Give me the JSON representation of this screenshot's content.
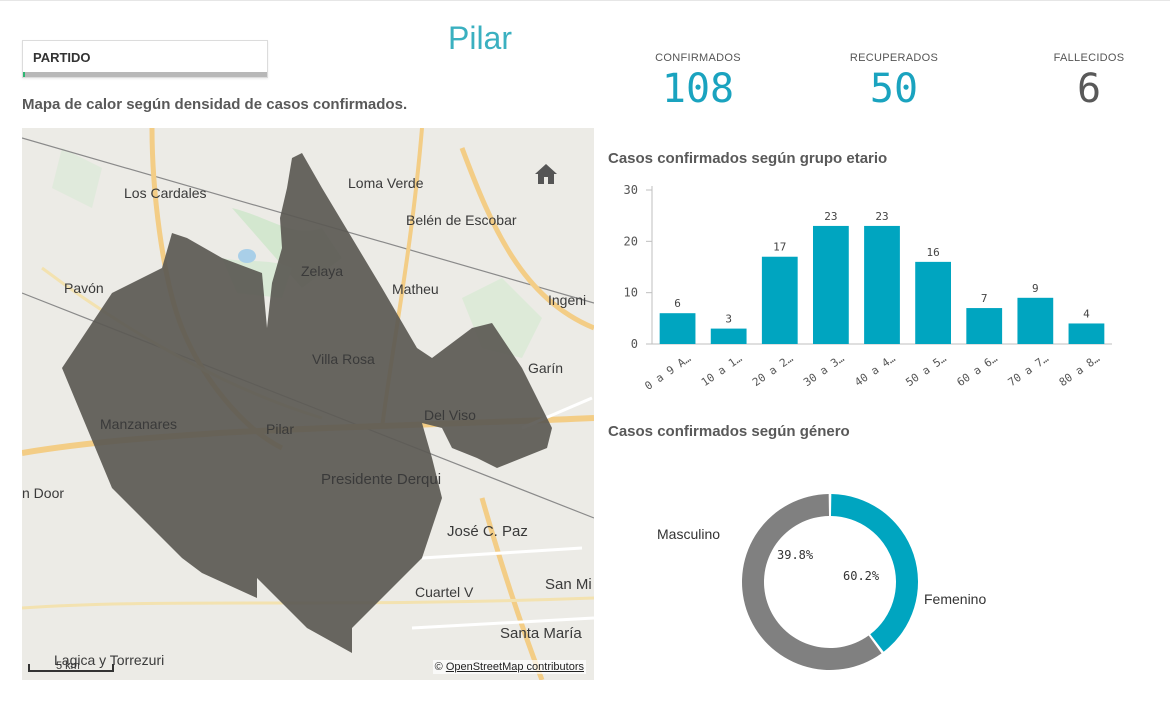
{
  "filter": {
    "label": "PARTIDO",
    "selected_fraction": 0.01
  },
  "page_title": "Pilar",
  "kpis": [
    {
      "label": "CONFIRMADOS",
      "value": "108",
      "color": "#1aa3bf"
    },
    {
      "label": "RECUPERADOS",
      "value": "50",
      "color": "#1aa3bf"
    },
    {
      "label": "FALLECIDOS",
      "value": "6",
      "color": "#595959"
    }
  ],
  "map": {
    "title": "Mapa de calor según densidad de casos confirmados.",
    "places": [
      "Los Cardales",
      "Loma Verde",
      "Belén de Escobar",
      "Pavón",
      "Zelaya",
      "Matheu",
      "Ingeni",
      "Villa Rosa",
      "Garín",
      "Manzanares",
      "Pilar",
      "Del Viso",
      "Presidente Derqui",
      "n Door",
      "José C. Paz",
      "Cuartel V",
      "San Mi",
      "Santa María",
      "Lagica y Torrezuri"
    ],
    "attribution_prefix": "©",
    "attribution_link": "OpenStreetMap contributors",
    "scale_label": "5 km",
    "home_icon": "home-icon"
  },
  "age_chart": {
    "title": "Casos confirmados según grupo etario",
    "chart_data": {
      "type": "bar",
      "categories": [
        "0 a 9 A…",
        "10 a 1…",
        "20 a 2…",
        "30 a 3…",
        "40 a 4…",
        "50 a 5…",
        "60 a 6…",
        "70 a 7…",
        "80 a 8…"
      ],
      "values": [
        6,
        3,
        17,
        23,
        23,
        16,
        7,
        9,
        4
      ],
      "yticks": [
        0,
        10,
        20,
        30
      ],
      "ylim": [
        0,
        30
      ],
      "color": "#00a5c0",
      "data_labels": true
    }
  },
  "gender_chart": {
    "title": "Casos confirmados según género",
    "chart_data": {
      "type": "pie",
      "donut": true,
      "categories": [
        "Masculino",
        "Femenino"
      ],
      "values": [
        39.8,
        60.2
      ],
      "labels": [
        "39.8%",
        "60.2%"
      ],
      "colors": [
        "#00a5c0",
        "#808080"
      ]
    }
  }
}
